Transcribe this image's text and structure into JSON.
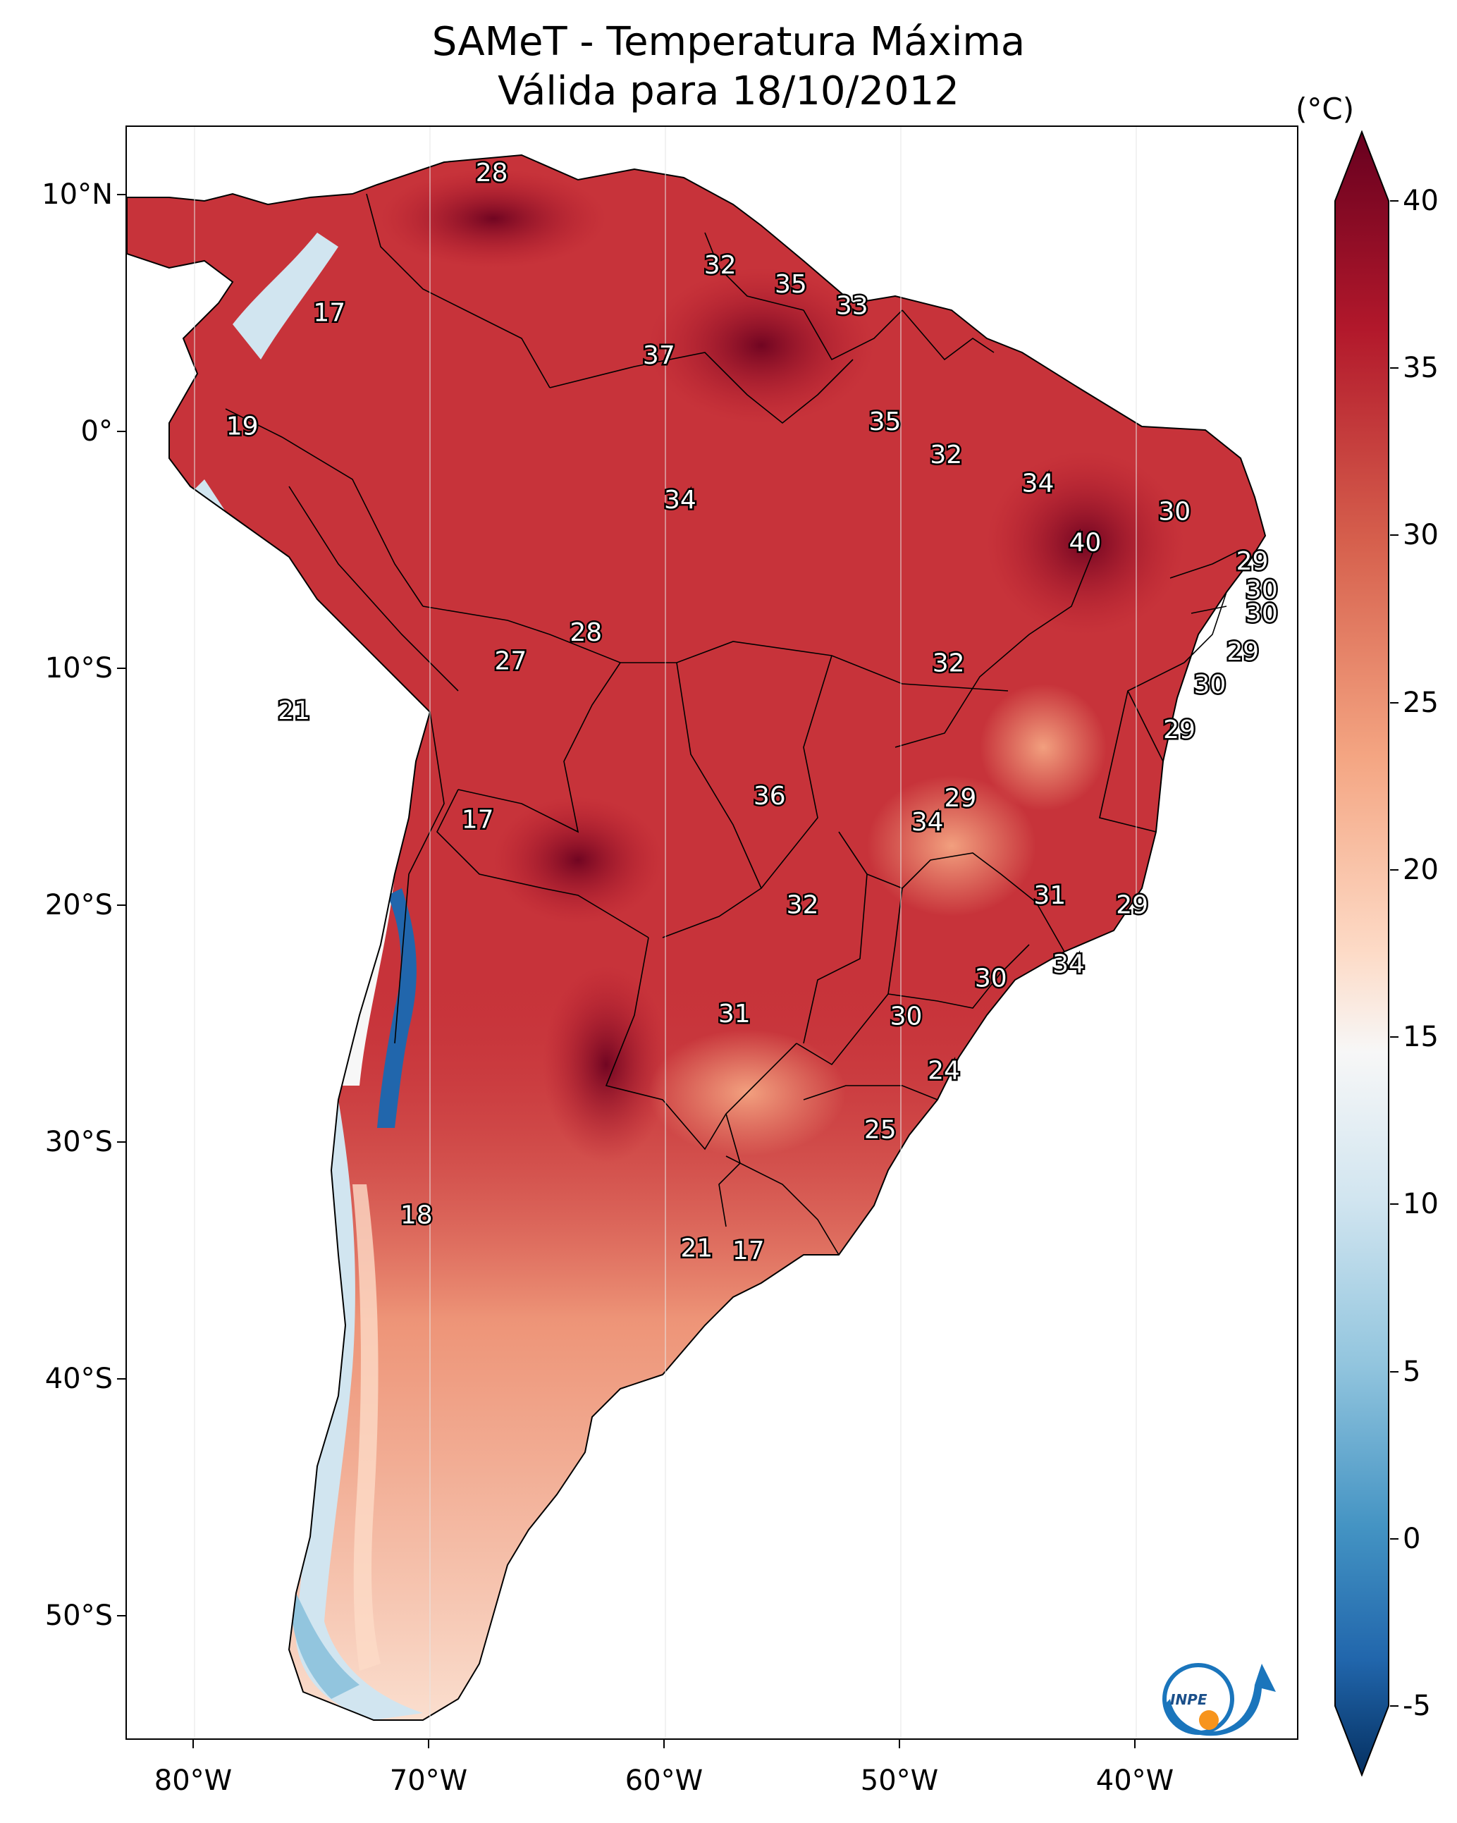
{
  "title": {
    "line1": "SAMeT - Temperatura Máxima",
    "line2": "Válida para 18/10/2012"
  },
  "axes": {
    "lon_ticks": [
      "80°W",
      "70°W",
      "60°W",
      "50°W",
      "40°W"
    ],
    "lat_ticks": [
      "10°N",
      "0°",
      "10°S",
      "20°S",
      "30°S",
      "40°S",
      "50°S"
    ]
  },
  "colorbar": {
    "unit": "(°C)",
    "ticks": [
      "40",
      "35",
      "30",
      "25",
      "20",
      "15",
      "10",
      "5",
      "0",
      "-5"
    ],
    "min": -5,
    "max": 40,
    "colors": {
      "cold": "#0b3a73",
      "cool": "#4f9bc7",
      "neutral": "#f7f7f7",
      "warm": "#f4a582",
      "hot": "#c7333a",
      "hottest": "#67001f"
    }
  },
  "map_labels": [
    {
      "text": "28",
      "lon": -67.5,
      "lat": 10.5
    },
    {
      "text": "17",
      "lon": -74.4,
      "lat": 4.6
    },
    {
      "text": "32",
      "lon": -57.8,
      "lat": 6.6
    },
    {
      "text": "35",
      "lon": -54.8,
      "lat": 5.8
    },
    {
      "text": "33",
      "lon": -52.2,
      "lat": 4.9
    },
    {
      "text": "37",
      "lon": -60.4,
      "lat": 2.8
    },
    {
      "text": "19",
      "lon": -78.1,
      "lat": -0.2
    },
    {
      "text": "35",
      "lon": -50.8,
      "lat": 0.0
    },
    {
      "text": "32",
      "lon": -48.2,
      "lat": -1.4
    },
    {
      "text": "34",
      "lon": -44.3,
      "lat": -2.6
    },
    {
      "text": "34",
      "lon": -59.5,
      "lat": -3.3
    },
    {
      "text": "30",
      "lon": -38.5,
      "lat": -3.8
    },
    {
      "text": "40",
      "lon": -42.3,
      "lat": -5.1
    },
    {
      "text": "29",
      "lon": -35.2,
      "lat": -5.9
    },
    {
      "text": "30",
      "lon": -34.8,
      "lat": -7.1
    },
    {
      "text": "30",
      "lon": -34.8,
      "lat": -8.1
    },
    {
      "text": "28",
      "lon": -63.5,
      "lat": -8.9
    },
    {
      "text": "27",
      "lon": -66.7,
      "lat": -10.1
    },
    {
      "text": "32",
      "lon": -48.1,
      "lat": -10.2
    },
    {
      "text": "29",
      "lon": -35.6,
      "lat": -9.7
    },
    {
      "text": "30",
      "lon": -37.0,
      "lat": -11.1
    },
    {
      "text": "21",
      "lon": -75.9,
      "lat": -12.2
    },
    {
      "text": "29",
      "lon": -38.3,
      "lat": -13.0
    },
    {
      "text": "36",
      "lon": -55.7,
      "lat": -15.8
    },
    {
      "text": "29",
      "lon": -47.6,
      "lat": -15.9
    },
    {
      "text": "34",
      "lon": -49.0,
      "lat": -16.9
    },
    {
      "text": "17",
      "lon": -68.1,
      "lat": -16.8
    },
    {
      "text": "31",
      "lon": -43.8,
      "lat": -20.0
    },
    {
      "text": "29",
      "lon": -40.3,
      "lat": -20.4
    },
    {
      "text": "32",
      "lon": -54.3,
      "lat": -20.4
    },
    {
      "text": "34",
      "lon": -43.0,
      "lat": -22.9
    },
    {
      "text": "30",
      "lon": -46.3,
      "lat": -23.5
    },
    {
      "text": "31",
      "lon": -57.2,
      "lat": -25.0
    },
    {
      "text": "30",
      "lon": -49.9,
      "lat": -25.1
    },
    {
      "text": "24",
      "lon": -48.3,
      "lat": -27.4
    },
    {
      "text": "25",
      "lon": -51.0,
      "lat": -29.9
    },
    {
      "text": "18",
      "lon": -70.7,
      "lat": -33.5
    },
    {
      "text": "21",
      "lon": -58.8,
      "lat": -34.9
    },
    {
      "text": "17",
      "lon": -56.6,
      "lat": -35.0
    }
  ]
}
